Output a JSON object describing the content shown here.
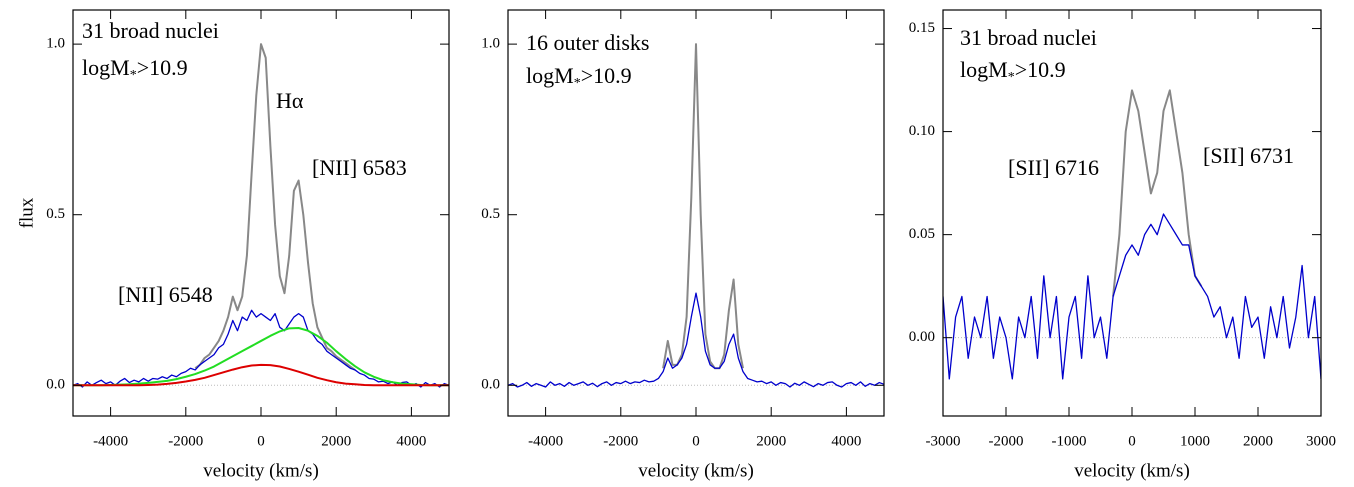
{
  "chart_data": [
    {
      "type": "line",
      "annotations": [
        {
          "text": "31 broad nuclei"
        },
        {
          "text": "logM",
          "sub": "*",
          "rest": ">10.9"
        },
        {
          "text": "Hα"
        },
        {
          "text": "[NII] 6583"
        },
        {
          "text": "[NII] 6548"
        }
      ],
      "xlabel": "velocity (km/s)",
      "ylabel": "flux",
      "xlim": [
        -5000,
        5000
      ],
      "xticks": [
        -4000,
        -2000,
        0,
        2000,
        4000
      ],
      "ylim": [
        -0.09,
        1.1
      ],
      "yticks": [
        {
          "value": 0,
          "label": "0.0"
        },
        {
          "value": 0.5,
          "label": "0.5"
        },
        {
          "value": 1,
          "label": "1.0"
        }
      ],
      "series": [
        {
          "color": "#888888",
          "x": [
            -1750,
            -1625,
            -1500,
            -1375,
            -1250,
            -1125,
            -1000,
            -875,
            -750,
            -625,
            -500,
            -375,
            -250,
            -125,
            0,
            125,
            250,
            375,
            500,
            625,
            750,
            875,
            1000,
            1125,
            1250,
            1375,
            1500,
            1625,
            1750,
            1875,
            2000,
            2125,
            2250,
            2375,
            2500
          ],
          "values": [
            0.05,
            0.06,
            0.08,
            0.09,
            0.11,
            0.13,
            0.16,
            0.2,
            0.26,
            0.22,
            0.26,
            0.38,
            0.62,
            0.85,
            1.0,
            0.96,
            0.7,
            0.47,
            0.32,
            0.27,
            0.38,
            0.57,
            0.6,
            0.5,
            0.36,
            0.24,
            0.17,
            0.14,
            0.11,
            0.1,
            0.085,
            0.075,
            0.065,
            0.055,
            0.045
          ]
        },
        {
          "color": "#0000cc",
          "x": [
            -5000,
            -4875,
            -4750,
            -4625,
            -4500,
            -4375,
            -4250,
            -4125,
            -4000,
            -3875,
            -3750,
            -3625,
            -3500,
            -3375,
            -3250,
            -3125,
            -3000,
            -2875,
            -2750,
            -2625,
            -2500,
            -2375,
            -2250,
            -2125,
            -2000,
            -1875,
            -1750,
            -1625,
            -1500,
            -1375,
            -1250,
            -1125,
            -1000,
            -875,
            -750,
            -625,
            -500,
            -375,
            -250,
            -125,
            0,
            125,
            250,
            375,
            500,
            625,
            750,
            875,
            1000,
            1125,
            1250,
            1375,
            1500,
            1625,
            1750,
            1875,
            2000,
            2125,
            2250,
            2375,
            2500,
            2625,
            2750,
            2875,
            3000,
            3125,
            3250,
            3375,
            3500,
            3625,
            3750,
            3875,
            4000,
            4125,
            4250,
            4375,
            4500,
            4625,
            4750,
            4875,
            5000
          ],
          "values": [
            0.0,
            0.005,
            -0.005,
            0.01,
            0.0,
            0.008,
            0.015,
            0.005,
            0.01,
            0.0,
            0.012,
            0.02,
            0.008,
            0.015,
            0.01,
            0.02,
            0.012,
            0.02,
            0.018,
            0.025,
            0.02,
            0.03,
            0.025,
            0.035,
            0.04,
            0.05,
            0.045,
            0.06,
            0.07,
            0.08,
            0.09,
            0.11,
            0.12,
            0.15,
            0.19,
            0.16,
            0.2,
            0.19,
            0.22,
            0.2,
            0.21,
            0.2,
            0.19,
            0.21,
            0.17,
            0.16,
            0.18,
            0.2,
            0.21,
            0.2,
            0.16,
            0.15,
            0.13,
            0.12,
            0.1,
            0.09,
            0.08,
            0.07,
            0.06,
            0.05,
            0.045,
            0.035,
            0.03,
            0.02,
            0.018,
            0.01,
            0.012,
            0.005,
            0.01,
            0.0,
            0.008,
            0.01,
            0.0,
            0.005,
            -0.005,
            0.008,
            0.0,
            0.005,
            -0.005,
            0.005,
            0.0
          ]
        },
        {
          "color": "#22dd22",
          "x": [
            -5000,
            -4750,
            -4500,
            -4250,
            -4000,
            -3750,
            -3500,
            -3250,
            -3000,
            -2750,
            -2500,
            -2250,
            -2000,
            -1750,
            -1500,
            -1250,
            -1000,
            -750,
            -500,
            -250,
            0,
            250,
            500,
            750,
            1000,
            1250,
            1500,
            1750,
            2000,
            2250,
            2500,
            2750,
            3000,
            3250,
            3500,
            3750,
            4000,
            4250,
            4500,
            4750,
            5000
          ],
          "values": [
            0,
            0,
            0,
            0,
            0.001,
            0.002,
            0.003,
            0.005,
            0.007,
            0.01,
            0.013,
            0.018,
            0.025,
            0.033,
            0.043,
            0.055,
            0.07,
            0.085,
            0.1,
            0.115,
            0.13,
            0.145,
            0.158,
            0.167,
            0.168,
            0.16,
            0.145,
            0.125,
            0.1,
            0.077,
            0.056,
            0.038,
            0.025,
            0.015,
            0.009,
            0.005,
            0.003,
            0.001,
            0,
            0,
            0
          ]
        },
        {
          "color": "#dd0000",
          "x": [
            -5000,
            -4750,
            -4500,
            -4250,
            -4000,
            -3750,
            -3500,
            -3250,
            -3000,
            -2750,
            -2500,
            -2250,
            -2000,
            -1750,
            -1500,
            -1250,
            -1000,
            -750,
            -500,
            -250,
            0,
            250,
            500,
            750,
            1000,
            1250,
            1500,
            1750,
            2000,
            2250,
            2500,
            2750,
            3000,
            3250,
            3500,
            3750,
            4000,
            4250,
            4500,
            4750,
            5000
          ],
          "values": [
            0,
            0,
            0,
            0,
            0,
            0,
            0,
            0,
            0.001,
            0.002,
            0.004,
            0.007,
            0.011,
            0.016,
            0.022,
            0.03,
            0.038,
            0.046,
            0.053,
            0.058,
            0.06,
            0.059,
            0.055,
            0.048,
            0.04,
            0.031,
            0.022,
            0.015,
            0.009,
            0.005,
            0.003,
            0.001,
            0,
            0,
            0,
            0,
            0,
            0,
            0,
            0,
            0
          ]
        }
      ]
    },
    {
      "type": "line",
      "annotations": [
        {
          "text": "16 outer disks"
        },
        {
          "text": "logM",
          "sub": "*",
          "rest": ">10.9"
        }
      ],
      "xlabel": "velocity (km/s)",
      "xlim": [
        -5000,
        5000
      ],
      "xticks": [
        -4000,
        -2000,
        0,
        2000,
        4000
      ],
      "ylim": [
        -0.09,
        1.1
      ],
      "yticks": [
        {
          "value": 0,
          "label": "0.0"
        },
        {
          "value": 0.5,
          "label": "0.5"
        },
        {
          "value": 1,
          "label": "1.0"
        }
      ],
      "series": [
        {
          "color": "#888888",
          "x": [
            -875,
            -750,
            -625,
            -500,
            -375,
            -250,
            -125,
            0,
            125,
            250,
            375,
            500,
            625,
            750,
            875,
            1000,
            1125,
            1250
          ],
          "values": [
            0.05,
            0.13,
            0.06,
            0.06,
            0.09,
            0.2,
            0.55,
            1.0,
            0.5,
            0.15,
            0.07,
            0.05,
            0.05,
            0.09,
            0.22,
            0.31,
            0.12,
            0.05
          ]
        },
        {
          "color": "#0000cc",
          "x": [
            -5000,
            -4875,
            -4750,
            -4625,
            -4500,
            -4375,
            -4250,
            -4125,
            -4000,
            -3875,
            -3750,
            -3625,
            -3500,
            -3375,
            -3250,
            -3125,
            -3000,
            -2875,
            -2750,
            -2625,
            -2500,
            -2375,
            -2250,
            -2125,
            -2000,
            -1875,
            -1750,
            -1625,
            -1500,
            -1375,
            -1250,
            -1125,
            -1000,
            -875,
            -750,
            -625,
            -500,
            -375,
            -250,
            -125,
            0,
            125,
            250,
            375,
            500,
            625,
            750,
            875,
            1000,
            1125,
            1250,
            1375,
            1500,
            1625,
            1750,
            1875,
            2000,
            2125,
            2250,
            2375,
            2500,
            2625,
            2750,
            2875,
            3000,
            3125,
            3250,
            3375,
            3500,
            3625,
            3750,
            3875,
            4000,
            4125,
            4250,
            4375,
            4500,
            4625,
            4750,
            4875,
            5000
          ],
          "values": [
            0.0,
            0.005,
            -0.005,
            0.0,
            0.008,
            -0.003,
            0.005,
            0.0,
            -0.005,
            0.01,
            0.0,
            0.005,
            -0.003,
            0.008,
            0.0,
            0.005,
            0.01,
            0.0,
            0.006,
            -0.004,
            0.005,
            0.01,
            0.0,
            0.008,
            0.005,
            0.012,
            0.005,
            0.01,
            0.008,
            0.015,
            0.01,
            0.012,
            0.02,
            0.04,
            0.08,
            0.05,
            0.06,
            0.08,
            0.12,
            0.2,
            0.27,
            0.2,
            0.1,
            0.06,
            0.05,
            0.05,
            0.07,
            0.12,
            0.15,
            0.08,
            0.04,
            0.02,
            0.015,
            0.01,
            0.012,
            0.005,
            0.01,
            0.0,
            0.008,
            0.005,
            -0.005,
            0.006,
            0.0,
            0.01,
            0.003,
            -0.004,
            0.005,
            0.0,
            0.008,
            0.01,
            0.0,
            -0.005,
            0.005,
            0.008,
            0.0,
            0.01,
            -0.003,
            0.005,
            0.0,
            0.008,
            0.003
          ]
        }
      ]
    },
    {
      "type": "line",
      "annotations": [
        {
          "text": "31 broad nuclei"
        },
        {
          "text": "logM",
          "sub": "*",
          "rest": ">10.9"
        },
        {
          "text": "[SII] 6716"
        },
        {
          "text": "[SII] 6731"
        }
      ],
      "xlabel": "velocity (km/s)",
      "xlim": [
        -3000,
        3000
      ],
      "xticks": [
        -3000,
        -2000,
        -1000,
        0,
        1000,
        2000,
        3000
      ],
      "ylim": [
        -0.038,
        0.159
      ],
      "yticks": [
        {
          "value": 0,
          "label": "0.00"
        },
        {
          "value": 0.05,
          "label": "0.05"
        },
        {
          "value": 0.1,
          "label": "0.10"
        },
        {
          "value": 0.15,
          "label": "0.15"
        }
      ],
      "series": [
        {
          "color": "#888888",
          "x": [
            -300,
            -200,
            -100,
            0,
            100,
            200,
            300,
            400,
            500,
            600,
            700,
            800,
            900,
            1000,
            1100
          ],
          "values": [
            0.02,
            0.05,
            0.1,
            0.12,
            0.11,
            0.09,
            0.07,
            0.08,
            0.11,
            0.12,
            0.1,
            0.08,
            0.05,
            0.03,
            0.025
          ]
        },
        {
          "color": "#0000cc",
          "x": [
            -3000,
            -2900,
            -2800,
            -2700,
            -2600,
            -2500,
            -2400,
            -2300,
            -2200,
            -2100,
            -2000,
            -1900,
            -1800,
            -1700,
            -1600,
            -1500,
            -1400,
            -1300,
            -1200,
            -1100,
            -1000,
            -900,
            -800,
            -700,
            -600,
            -500,
            -400,
            -300,
            -200,
            -100,
            0,
            100,
            200,
            300,
            400,
            500,
            600,
            700,
            800,
            900,
            1000,
            1100,
            1200,
            1300,
            1400,
            1500,
            1600,
            1700,
            1800,
            1900,
            2000,
            2100,
            2200,
            2300,
            2400,
            2500,
            2600,
            2700,
            2800,
            2900,
            3000
          ],
          "values": [
            0.02,
            -0.02,
            0.01,
            0.02,
            -0.01,
            0.01,
            0.0,
            0.02,
            -0.01,
            0.01,
            0.0,
            -0.02,
            0.01,
            0.0,
            0.02,
            -0.01,
            0.03,
            0.0,
            0.02,
            -0.02,
            0.01,
            0.02,
            -0.01,
            0.03,
            0.0,
            0.01,
            -0.01,
            0.02,
            0.03,
            0.04,
            0.045,
            0.04,
            0.05,
            0.055,
            0.05,
            0.06,
            0.055,
            0.05,
            0.045,
            0.045,
            0.03,
            0.025,
            0.02,
            0.01,
            0.015,
            0.0,
            0.01,
            -0.01,
            0.02,
            0.005,
            0.01,
            -0.01,
            0.015,
            0.0,
            0.02,
            -0.005,
            0.01,
            0.035,
            0.0,
            0.02,
            -0.02
          ]
        }
      ]
    }
  ]
}
